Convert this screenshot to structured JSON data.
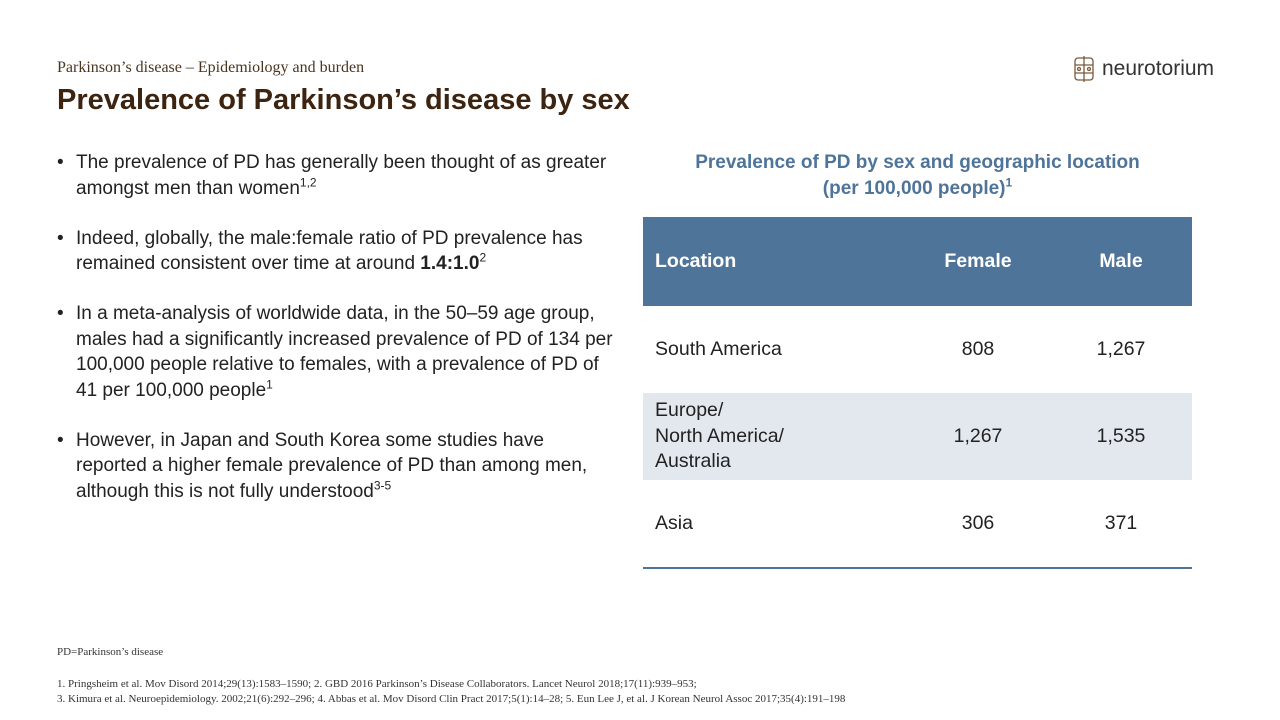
{
  "header": {
    "subtitle": "Parkinson’s disease – Epidemiology and burden",
    "title": "Prevalence of Parkinson’s disease by sex",
    "logo": "neurotorium"
  },
  "bullets": [
    {
      "text": "The prevalence of PD has generally been thought of as greater amongst men than women",
      "sup": "1,2"
    },
    {
      "text": "Indeed, globally, the male:female ratio of PD prevalence has remained consistent over time at around ",
      "bold": "1.4:1.0",
      "sup": "2"
    },
    {
      "text": "In a meta-analysis of worldwide data, in the 50–59 age group, males had a significantly increased prevalence of PD of 134 per 100,000 people relative to females, with a prevalence of PD of 41 per 100,000 people",
      "sup": "1"
    },
    {
      "text": "However, in Japan and South Korea some studies have reported a higher female prevalence of PD than among men, although this is not fully understood",
      "sup": "3-5"
    }
  ],
  "table": {
    "title": "Prevalence of PD by sex and geographic location",
    "subtitle": "(per 100,000 people)",
    "subtitle_sup": "1",
    "columns": [
      "Location",
      "Female",
      "Male"
    ],
    "rows": [
      [
        "South America",
        "808",
        "1,267"
      ],
      [
        "Europe/\nNorth America/\nAustralia",
        "1,267",
        "1,535"
      ],
      [
        "Asia",
        "306",
        "371"
      ]
    ]
  },
  "footer": {
    "abbreviation": "PD=Parkinson’s disease",
    "references": [
      "1. Pringsheim et al. Mov Disord 2014;29(13):1583–1590; 2. GBD 2016 Parkinson’s Disease Collaborators. Lancet Neurol 2018;17(11):939–953;",
      "3. Kimura et al. Neuroepidemiology. 2002;21(6):292–296; 4. Abbas et al. Mov Disord Clin Pract 2017;5(1):14–28; 5. Eun Lee J, et al. J Korean Neurol Assoc 2017;35(4):191–198"
    ]
  }
}
